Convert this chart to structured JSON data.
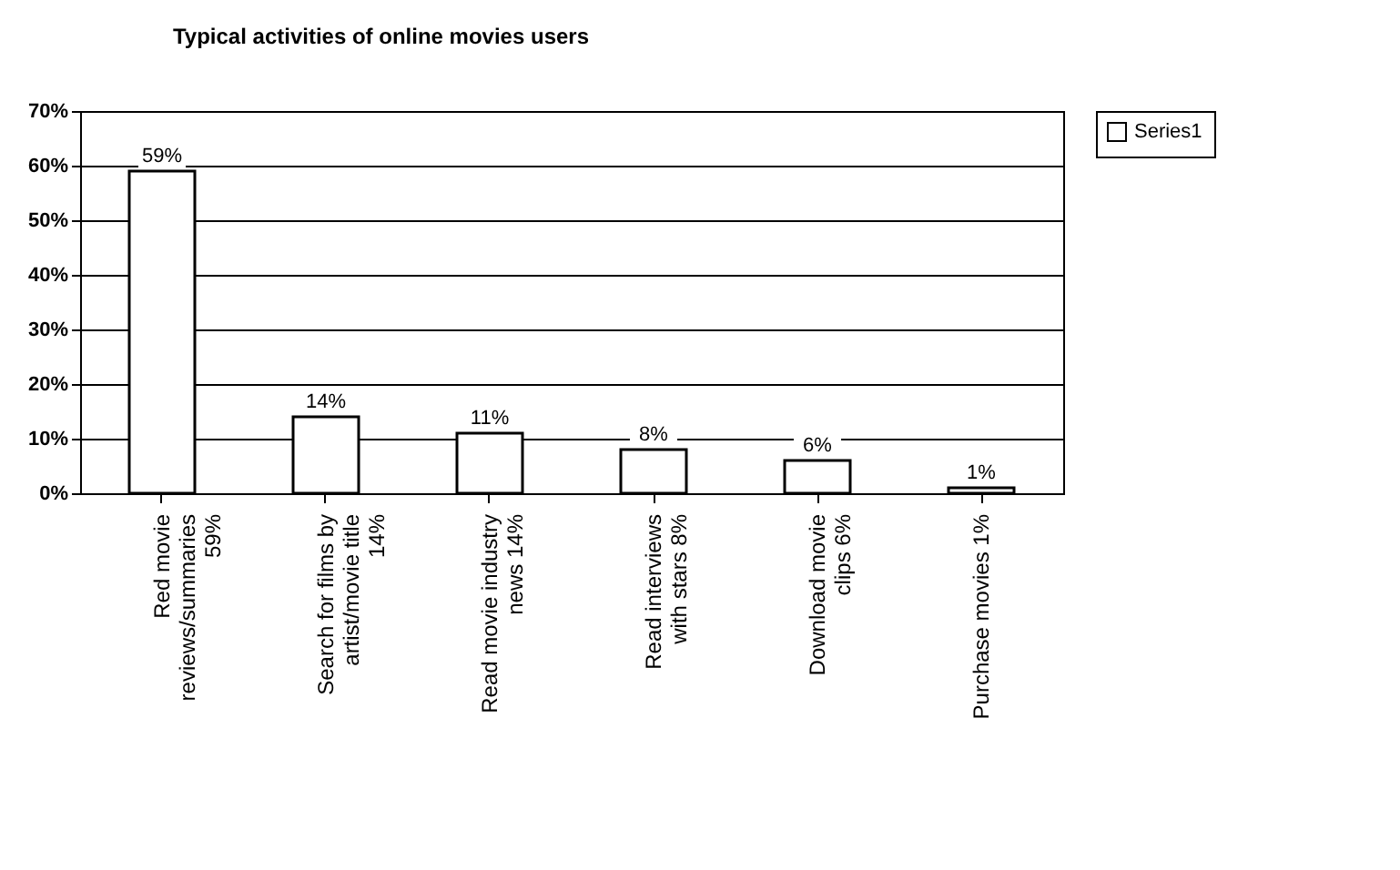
{
  "chart_data": {
    "type": "bar",
    "title": "Typical activities of online movies users",
    "categories": [
      "Red movie\nreviews/summaries\n59%",
      "Search for films by\nartist/movie title\n14%",
      "Read movie industry\nnews 14%",
      "Read interviews\nwith stars 8%",
      "Download movie\nclips 6%",
      "Purchase movies 1%"
    ],
    "series": [
      {
        "name": "Series1",
        "color": "#ffffff",
        "values": [
          59,
          14,
          11,
          8,
          6,
          1
        ],
        "value_labels": [
          "59%",
          "14%",
          "11%",
          "8%",
          "6%",
          "1%"
        ]
      }
    ],
    "ylim": [
      0,
      70
    ],
    "yticks": [
      {
        "value": 0,
        "label": "0%"
      },
      {
        "value": 10,
        "label": "10%"
      },
      {
        "value": 20,
        "label": "20%"
      },
      {
        "value": 30,
        "label": "30%"
      },
      {
        "value": 40,
        "label": "40%"
      },
      {
        "value": 50,
        "label": "50%"
      },
      {
        "value": 60,
        "label": "60%"
      },
      {
        "value": 70,
        "label": "70%"
      }
    ],
    "grid": "y",
    "legend": "right"
  }
}
